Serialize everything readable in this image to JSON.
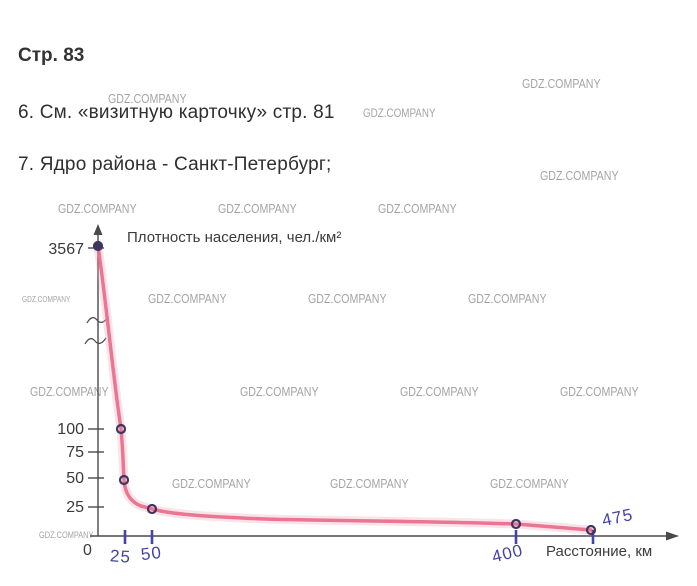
{
  "page": {
    "heading": "Стр. 83",
    "item6": "6. См. «визитную карточку» стр. 81",
    "item7": "7. Ядро района - Санкт-Петербург;"
  },
  "watermark": {
    "text": "GDZ.COMPANY"
  },
  "chart_data": {
    "type": "line",
    "title": "Плотность населения, чел./км²",
    "xlabel": "Расстояние, км",
    "origin_label": "0",
    "y_axis_break": true,
    "grid": false,
    "y_ticks_printed": [
      "3567",
      "100",
      "75",
      "50",
      "25"
    ],
    "x_ticks_handwritten": [
      "25",
      "50",
      "400",
      "475"
    ],
    "points": [
      {
        "x": 0,
        "y": 3567
      },
      {
        "x": 22,
        "y": 100
      },
      {
        "x": 25,
        "y": 50
      },
      {
        "x": 50,
        "y": 25
      },
      {
        "x": 400,
        "y": 10
      },
      {
        "x": 475,
        "y": 5
      }
    ],
    "xlim": [
      0,
      500
    ],
    "curve_color": "#e8708e",
    "curve_halo_color": "#f2a3b6",
    "point_color": "#3f3560",
    "handwriting_color": "#4443a8",
    "axis_color": "#4a4a4a"
  }
}
